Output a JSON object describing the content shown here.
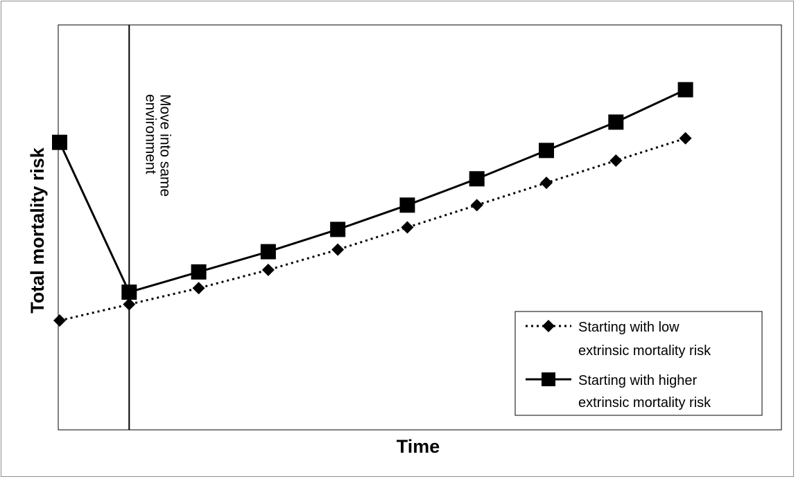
{
  "chart_data": {
    "type": "line",
    "title": "",
    "xlabel": "Time",
    "ylabel": "Total mortality risk",
    "x": [
      0,
      1,
      2,
      3,
      4,
      5,
      6,
      7,
      8,
      9
    ],
    "xlim": [
      0,
      10.4
    ],
    "ylim": [
      0,
      10
    ],
    "series": [
      {
        "name": "Starting with low extrinsic mortality risk",
        "name_lines": [
          "Starting with low",
          "extrinsic mortality risk"
        ],
        "style": "dotted",
        "marker": "diamond",
        "color": "#000000",
        "values": [
          2.7,
          3.1,
          3.5,
          3.95,
          4.45,
          5.0,
          5.55,
          6.1,
          6.65,
          7.2
        ]
      },
      {
        "name": "Starting with higher extrinsic mortality risk",
        "name_lines": [
          "Starting with higher",
          "extrinsic mortality risk"
        ],
        "style": "solid",
        "marker": "square",
        "color": "#000000",
        "values": [
          7.1,
          3.4,
          3.9,
          4.4,
          4.95,
          5.55,
          6.2,
          6.9,
          7.6,
          8.4
        ]
      }
    ],
    "annotation": {
      "lines": [
        "Move into same",
        "environment"
      ],
      "at_x": 1
    },
    "legend_position": "bottom-right",
    "grid": false
  }
}
